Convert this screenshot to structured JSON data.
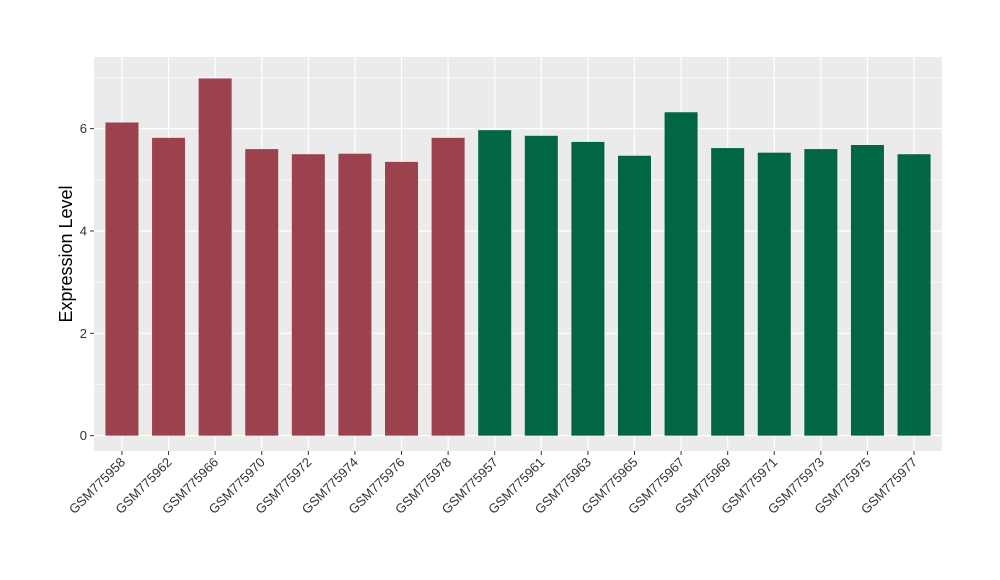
{
  "chart_data": {
    "type": "bar",
    "title": "",
    "xlabel": "",
    "ylabel": "Expression Level",
    "ylim": [
      -0.3,
      7.4
    ],
    "yticks": [
      0,
      2,
      4,
      6
    ],
    "grid": true,
    "colors": {
      "group1": "#9B424E",
      "group2": "#016644",
      "panel": "#EBEBEB",
      "grid": "#FFFFFF"
    },
    "categories": [
      "GSM775958",
      "GSM775962",
      "GSM775966",
      "GSM775970",
      "GSM775972",
      "GSM775974",
      "GSM775976",
      "GSM775978",
      "GSM775957",
      "GSM775961",
      "GSM775963",
      "GSM775965",
      "GSM775967",
      "GSM775969",
      "GSM775971",
      "GSM775973",
      "GSM775975",
      "GSM775977"
    ],
    "values": [
      6.12,
      5.82,
      6.98,
      5.6,
      5.5,
      5.51,
      5.35,
      5.82,
      5.97,
      5.86,
      5.74,
      5.47,
      6.32,
      5.62,
      5.53,
      5.6,
      5.68,
      5.5
    ],
    "groups": [
      1,
      1,
      1,
      1,
      1,
      1,
      1,
      1,
      2,
      2,
      2,
      2,
      2,
      2,
      2,
      2,
      2,
      2
    ]
  }
}
